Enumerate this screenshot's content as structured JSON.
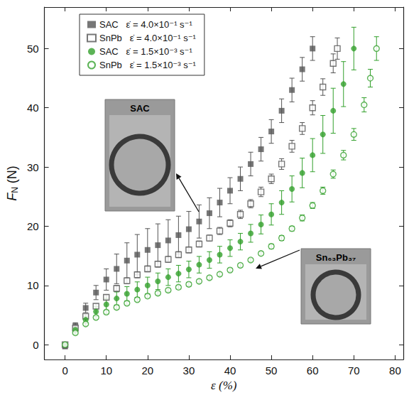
{
  "chart_data": {
    "type": "scatter",
    "x_label": "ε (%)",
    "y_label": {
      "text": "F",
      "subscript": "N",
      "suffix": " (N)"
    },
    "xlim": [
      -5,
      82
    ],
    "xticks": [
      0,
      10,
      20,
      30,
      40,
      50,
      60,
      70,
      80
    ],
    "ylim": [
      -2.5,
      57
    ],
    "yticks": [
      0,
      10,
      20,
      30,
      40,
      50
    ],
    "grid": false,
    "legend": "upper left",
    "series": [
      {
        "name": "SAC   ε̇ = 4.0×10⁻¹ s⁻¹",
        "color": "#555555",
        "marker": "square",
        "x": [
          0,
          2.5,
          5,
          7.5,
          10,
          12.5,
          15,
          17.5,
          20,
          22.5,
          25,
          27.5,
          30,
          32.5,
          35,
          37.5,
          40,
          42.5,
          45,
          47.5,
          50,
          52.5,
          55,
          57.5,
          60
        ],
        "values": [
          -0.3,
          3.2,
          6.2,
          8.8,
          11,
          12.8,
          14.2,
          15.2,
          16,
          16.8,
          17.6,
          18.5,
          19.5,
          20.8,
          22.2,
          24,
          26,
          28,
          30.5,
          33,
          36,
          39.5,
          43,
          46.5,
          50
        ],
        "errors": [
          0.3,
          0.5,
          0.8,
          1.2,
          1.8,
          2.5,
          3,
          3.4,
          3.6,
          3.6,
          3.5,
          3.2,
          3,
          2.8,
          2.6,
          2.4,
          2.2,
          2,
          2,
          2,
          2,
          2,
          2,
          2,
          2
        ]
      },
      {
        "name": "SnPb   ε̇ = 4.0×10⁻¹ s⁻¹",
        "color": "#555555",
        "marker": "square-open",
        "x": [
          0,
          2.5,
          5,
          7.5,
          10,
          12.5,
          15,
          17.5,
          20,
          22.5,
          25,
          27.5,
          30,
          32.5,
          35,
          37.5,
          40,
          42.5,
          45,
          47.5,
          50,
          52.5,
          55,
          57.5,
          60,
          62.5,
          65,
          66
        ],
        "values": [
          0,
          2.8,
          4.8,
          6.5,
          8,
          9.5,
          10.8,
          11.8,
          12.8,
          13.6,
          14.4,
          15.2,
          16,
          17,
          18,
          19.2,
          20.5,
          22,
          23.8,
          25.8,
          28,
          30.5,
          33.5,
          36.5,
          40,
          43.5,
          47.5,
          50
        ],
        "errors": [
          0.2,
          0.3,
          0.3,
          0.4,
          0.4,
          0.5,
          0.5,
          0.5,
          0.5,
          0.5,
          0.5,
          0.5,
          0.5,
          0.5,
          0.5,
          0.6,
          0.6,
          0.7,
          0.7,
          0.8,
          0.8,
          0.9,
          1,
          1,
          1.2,
          1.4,
          1.6,
          1.8
        ]
      },
      {
        "name": "SAC   ε̇ = 1.5×10⁻³ s⁻¹",
        "color": "#33a02c",
        "marker": "circle",
        "x": [
          0,
          2.5,
          5,
          7.5,
          10,
          12.5,
          15,
          17.5,
          20,
          22.5,
          25,
          27.5,
          30,
          32.5,
          35,
          37.5,
          40,
          42.5,
          45,
          47.5,
          50,
          52.5,
          55,
          57.5,
          60,
          62.5,
          65,
          67.5,
          70
        ],
        "values": [
          0,
          2.5,
          4.2,
          5.6,
          6.8,
          7.8,
          8.6,
          9.3,
          10,
          10.7,
          11.4,
          12,
          12.7,
          13.5,
          14.3,
          15.2,
          16.3,
          17.4,
          18.8,
          20.3,
          22,
          24,
          26.3,
          29,
          32,
          35.5,
          39.5,
          44,
          50
        ],
        "errors": [
          0.2,
          0.4,
          0.6,
          0.8,
          1,
          1.1,
          1.2,
          1.3,
          1.4,
          1.4,
          1.4,
          1.4,
          1.4,
          1.4,
          1.4,
          1.4,
          1.4,
          1.4,
          1.5,
          1.6,
          1.8,
          2,
          2.2,
          2.5,
          2.8,
          3.2,
          3.8,
          3.8,
          3.6
        ]
      },
      {
        "name": "SnPb   ε̇ = 1.5×10⁻³ s⁻¹",
        "color": "#33a02c",
        "marker": "circle-open",
        "x": [
          0,
          2.5,
          5,
          7.5,
          10,
          12.5,
          15,
          17.5,
          20,
          22.5,
          25,
          27.5,
          30,
          32.5,
          35,
          37.5,
          40,
          42.5,
          45,
          47.5,
          50,
          52.5,
          55,
          57.5,
          60,
          62.5,
          65,
          67.5,
          70,
          72.5,
          74,
          75.5
        ],
        "values": [
          0,
          2,
          3.5,
          4.6,
          5.5,
          6.3,
          7,
          7.6,
          8.2,
          8.7,
          9.2,
          9.7,
          10.2,
          10.7,
          11.3,
          11.9,
          12.6,
          13.4,
          14.3,
          15.4,
          16.6,
          18,
          19.6,
          21.4,
          23.5,
          26,
          28.8,
          32,
          35.5,
          40.5,
          45,
          50
        ],
        "errors": [
          0.2,
          0.2,
          0.3,
          0.3,
          0.3,
          0.3,
          0.3,
          0.3,
          0.3,
          0.3,
          0.3,
          0.3,
          0.3,
          0.3,
          0.3,
          0.3,
          0.3,
          0.3,
          0.3,
          0.3,
          0.4,
          0.4,
          0.4,
          0.5,
          0.5,
          0.6,
          0.7,
          0.8,
          1,
          1.2,
          1.5,
          2
        ]
      }
    ],
    "annotations": [
      {
        "text": "SAC"
      },
      {
        "text": "Sn₆₃Pb₃₇"
      }
    ]
  }
}
